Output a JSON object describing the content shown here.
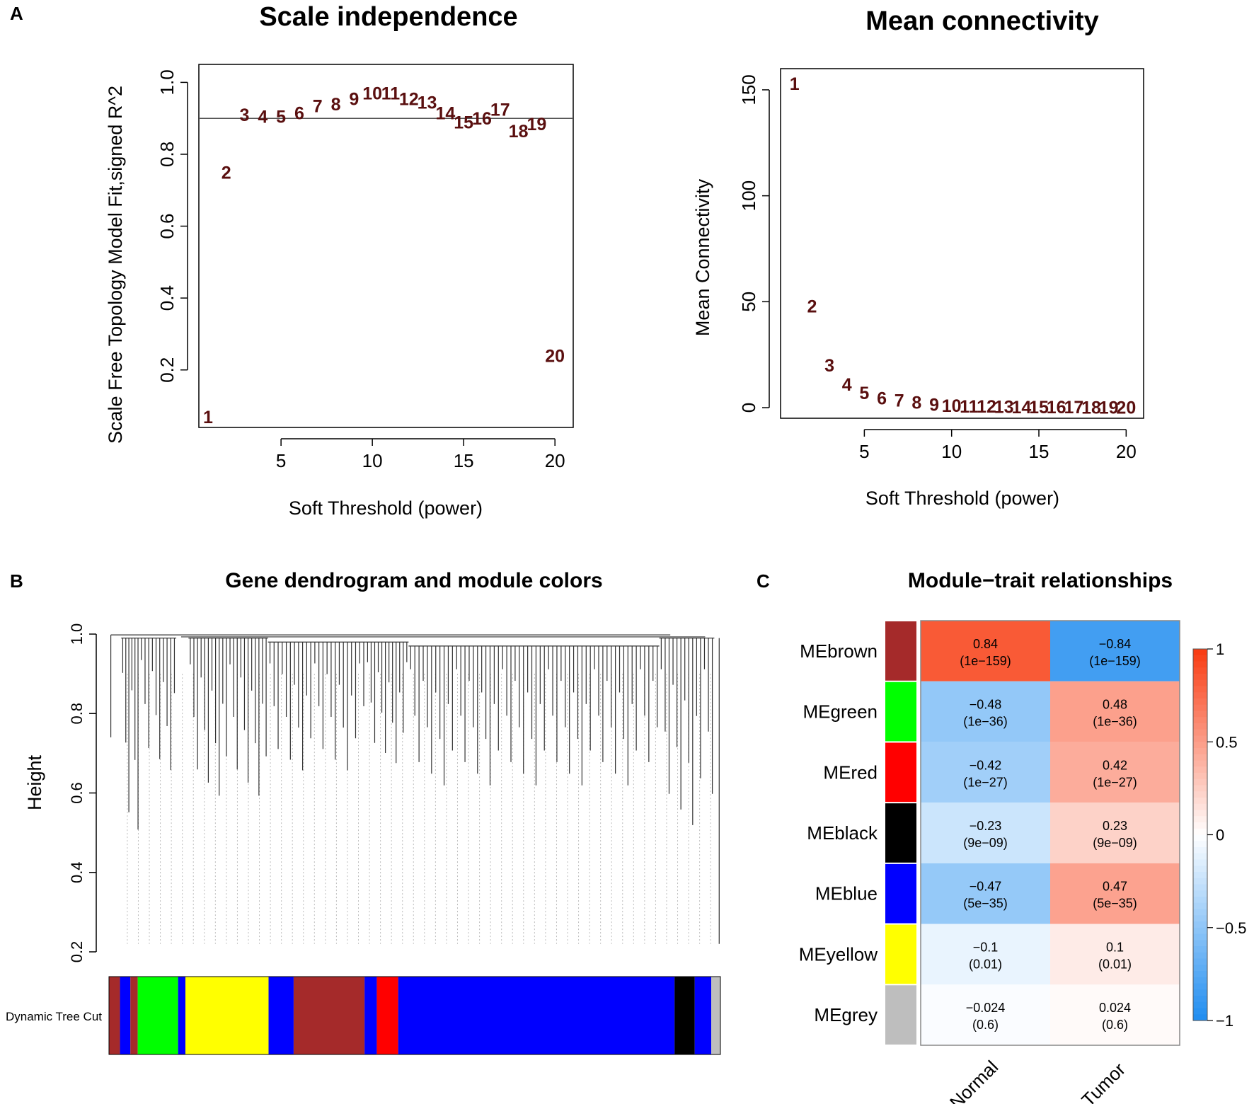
{
  "panel_letters": {
    "a": "A",
    "b": "B",
    "c": "C"
  },
  "chart_data": [
    {
      "id": "scale_independence",
      "type": "scatter",
      "title": "Scale independence",
      "xlabel": "Soft Threshold (power)",
      "ylabel": "Scale Free Topology Model Fit,signed R^2",
      "xlim": [
        0.5,
        21
      ],
      "ylim": [
        0.04,
        1.05
      ],
      "xticks": [
        5,
        10,
        15,
        20
      ],
      "yticks": [
        0.2,
        0.4,
        0.6,
        0.8,
        1.0
      ],
      "ytick_labels": [
        "0.2",
        "0.4",
        "0.6",
        "0.8",
        "1.0"
      ],
      "hline": 0.9,
      "x": [
        1,
        2,
        3,
        4,
        5,
        6,
        7,
        8,
        9,
        10,
        11,
        12,
        13,
        14,
        15,
        16,
        17,
        18,
        19,
        20
      ],
      "y": [
        0.07,
        0.75,
        0.91,
        0.905,
        0.905,
        0.915,
        0.935,
        0.94,
        0.955,
        0.97,
        0.97,
        0.955,
        0.945,
        0.915,
        0.89,
        0.9,
        0.925,
        0.865,
        0.885,
        0.24
      ],
      "labels": [
        "1",
        "2",
        "3",
        "4",
        "5",
        "6",
        "7",
        "8",
        "9",
        "10",
        "11",
        "12",
        "13",
        "14",
        "15",
        "16",
        "17",
        "18",
        "19",
        "20"
      ]
    },
    {
      "id": "mean_connectivity",
      "type": "scatter",
      "title": "Mean connectivity",
      "xlabel": "Soft Threshold (power)",
      "ylabel": "Mean Connectivity",
      "xlim": [
        0.2,
        21
      ],
      "ylim": [
        -5,
        160
      ],
      "xticks": [
        5,
        10,
        15,
        20
      ],
      "yticks": [
        0,
        50,
        100,
        150
      ],
      "ytick_labels": [
        "0",
        "50",
        "100",
        "150"
      ],
      "x": [
        1,
        2,
        3,
        4,
        5,
        6,
        7,
        8,
        9,
        10,
        11,
        12,
        13,
        14,
        15,
        16,
        17,
        18,
        19,
        20
      ],
      "y": [
        153,
        48,
        20,
        11,
        7,
        4.5,
        3.5,
        2.5,
        1.5,
        1,
        0.7,
        0.6,
        0.5,
        0.4,
        0.3,
        0.3,
        0.3,
        0.2,
        0.2,
        0.2
      ],
      "labels": [
        "1",
        "2",
        "3",
        "4",
        "5",
        "6",
        "7",
        "8",
        "9",
        "10",
        "11",
        "12",
        "13",
        "14",
        "15",
        "16",
        "17",
        "18",
        "19",
        "20"
      ]
    },
    {
      "id": "gene_dendrogram",
      "type": "dendrogram",
      "title": "Gene dendrogram and module colors",
      "ylabel": "Height",
      "ylim": [
        0.2,
        1.0
      ],
      "yticks": [
        0.2,
        0.4,
        0.6,
        0.8,
        1.0
      ],
      "ytick_labels": [
        "0.2",
        "0.4",
        "0.6",
        "0.8",
        "1.0"
      ],
      "color_bar_label": "Dynamic Tree Cut",
      "color_segments": [
        {
          "color": "#a52a2a",
          "from": 0.0,
          "to": 0.018
        },
        {
          "color": "#0000ff",
          "from": 0.018,
          "to": 0.035
        },
        {
          "color": "#a52a2a",
          "from": 0.035,
          "to": 0.047
        },
        {
          "color": "#00ff00",
          "from": 0.047,
          "to": 0.113
        },
        {
          "color": "#0000ff",
          "from": 0.113,
          "to": 0.125
        },
        {
          "color": "#ffff00",
          "from": 0.125,
          "to": 0.261
        },
        {
          "color": "#0000ff",
          "from": 0.261,
          "to": 0.302
        },
        {
          "color": "#a52a2a",
          "from": 0.302,
          "to": 0.418
        },
        {
          "color": "#0000ff",
          "from": 0.418,
          "to": 0.438
        },
        {
          "color": "#ff0000",
          "from": 0.438,
          "to": 0.473
        },
        {
          "color": "#0000ff",
          "from": 0.473,
          "to": 0.925
        },
        {
          "color": "#000000",
          "from": 0.925,
          "to": 0.958
        },
        {
          "color": "#0000ff",
          "from": 0.958,
          "to": 0.985
        },
        {
          "color": "#bebebe",
          "from": 0.985,
          "to": 1.0
        }
      ]
    },
    {
      "id": "module_trait",
      "type": "heatmap",
      "title": "Module−trait relationships",
      "columns": [
        "Normal",
        "Tumor"
      ],
      "rows": [
        {
          "module": "MEbrown",
          "color": "#a52a2a",
          "corr": [
            0.84,
            -0.84
          ],
          "cells": [
            [
              "0.84",
              "(1e−159)"
            ],
            [
              "−0.84",
              "(1e−159)"
            ]
          ]
        },
        {
          "module": "MEgreen",
          "color": "#00ff00",
          "corr": [
            -0.48,
            0.48
          ],
          "cells": [
            [
              "−0.48",
              "(1e−36)"
            ],
            [
              "0.48",
              "(1e−36)"
            ]
          ]
        },
        {
          "module": "MEred",
          "color": "#ff0000",
          "corr": [
            -0.42,
            0.42
          ],
          "cells": [
            [
              "−0.42",
              "(1e−27)"
            ],
            [
              "0.42",
              "(1e−27)"
            ]
          ]
        },
        {
          "module": "MEblack",
          "color": "#000000",
          "corr": [
            -0.23,
            0.23
          ],
          "cells": [
            [
              "−0.23",
              "(9e−09)"
            ],
            [
              "0.23",
              "(9e−09)"
            ]
          ]
        },
        {
          "module": "MEblue",
          "color": "#0000ff",
          "corr": [
            -0.47,
            0.47
          ],
          "cells": [
            [
              "−0.47",
              "(5e−35)"
            ],
            [
              "0.47",
              "(5e−35)"
            ]
          ]
        },
        {
          "module": "MEyellow",
          "color": "#ffff00",
          "corr": [
            -0.1,
            0.1
          ],
          "cells": [
            [
              "−0.1",
              "(0.01)"
            ],
            [
              "0.1",
              "(0.01)"
            ]
          ]
        },
        {
          "module": "MEgrey",
          "color": "#bebebe",
          "corr": [
            -0.024,
            0.024
          ],
          "cells": [
            [
              "−0.024",
              "(0.6)"
            ],
            [
              "0.024",
              "(0.6)"
            ]
          ]
        }
      ],
      "legend": {
        "range": [
          -1,
          1
        ],
        "ticks": [
          1,
          0.5,
          0,
          -0.5,
          -1
        ],
        "tick_labels": [
          "1",
          "0.5",
          "0",
          "−0.5",
          "−1"
        ]
      }
    }
  ]
}
